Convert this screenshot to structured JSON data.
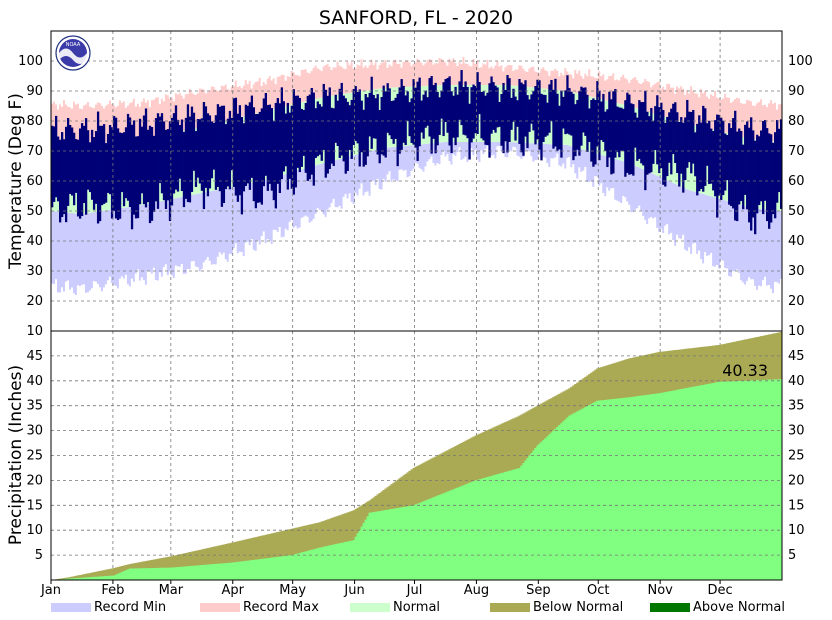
{
  "chart_data": {
    "title": "SANFORD, FL - 2020",
    "type": "area",
    "x_tick_labels": [
      "Jan",
      "Feb",
      "Mar",
      "Apr",
      "May",
      "Jun",
      "Jul",
      "Aug",
      "Sep",
      "Oct",
      "Nov",
      "Dec"
    ],
    "temperature_panel": {
      "ylabel": "Temperature (Deg F)",
      "ylim": [
        10,
        110
      ],
      "y_ticks": [
        20,
        30,
        40,
        50,
        60,
        70,
        80,
        90,
        100
      ],
      "grid": true,
      "monthly": {
        "record_min": [
          24,
          28,
          32,
          40,
          50,
          60,
          68,
          70,
          66,
          52,
          38,
          26
        ],
        "record_max": [
          85,
          86,
          90,
          93,
          98,
          99,
          100,
          98,
          96,
          94,
          90,
          86
        ],
        "normal_low": [
          49,
          52,
          56,
          60,
          66,
          71,
          73,
          73,
          72,
          66,
          57,
          51
        ],
        "normal_high": [
          72,
          74,
          78,
          83,
          88,
          91,
          92,
          92,
          90,
          85,
          79,
          74
        ],
        "observed_low": [
          52,
          50,
          58,
          55,
          66,
          71,
          75,
          74,
          73,
          65,
          62,
          48
        ],
        "observed_high": [
          77,
          79,
          82,
          85,
          88,
          89,
          92,
          91,
          90,
          86,
          82,
          77
        ]
      }
    },
    "precipitation_panel": {
      "ylabel": "Precipitation (Inches)",
      "ylim": [
        0,
        50
      ],
      "y_ticks": [
        5,
        10,
        15,
        20,
        25,
        30,
        35,
        40,
        45
      ],
      "top_tick_label": "10",
      "grid": true,
      "day_of_year": [
        1,
        10,
        32,
        40,
        61,
        91,
        121,
        135,
        152,
        160,
        182,
        213,
        235,
        244,
        260,
        274,
        290,
        305,
        335,
        366
      ],
      "observed_cumulative": [
        0,
        0.3,
        0.9,
        2.3,
        2.5,
        3.5,
        5.0,
        6.5,
        8.0,
        13.5,
        15.0,
        20.0,
        22.5,
        27.0,
        33.0,
        36.0,
        36.7,
        37.5,
        39.8,
        40.33
      ],
      "normal_cumulative": [
        0,
        0.6,
        2.4,
        3.2,
        4.8,
        7.5,
        10.3,
        11.6,
        14.0,
        16.0,
        22.5,
        29.0,
        33.0,
        35.0,
        38.5,
        42.5,
        44.5,
        45.8,
        47.2,
        49.8
      ],
      "annotation": "40.33"
    },
    "legend": {
      "position": "bottom",
      "items": [
        {
          "label": "Record Min",
          "color": "#ccccff"
        },
        {
          "label": "Record Max",
          "color": "#ffcccc"
        },
        {
          "label": "Normal",
          "color": "#ccffcc"
        },
        {
          "label": "Below Normal",
          "color": "#aaaa55"
        },
        {
          "label": "Above Normal",
          "color": "#007700"
        }
      ]
    },
    "colors": {
      "observed": "#000077",
      "precip_observed": "#80ff80",
      "precip_normal": "#aaaa55"
    }
  }
}
